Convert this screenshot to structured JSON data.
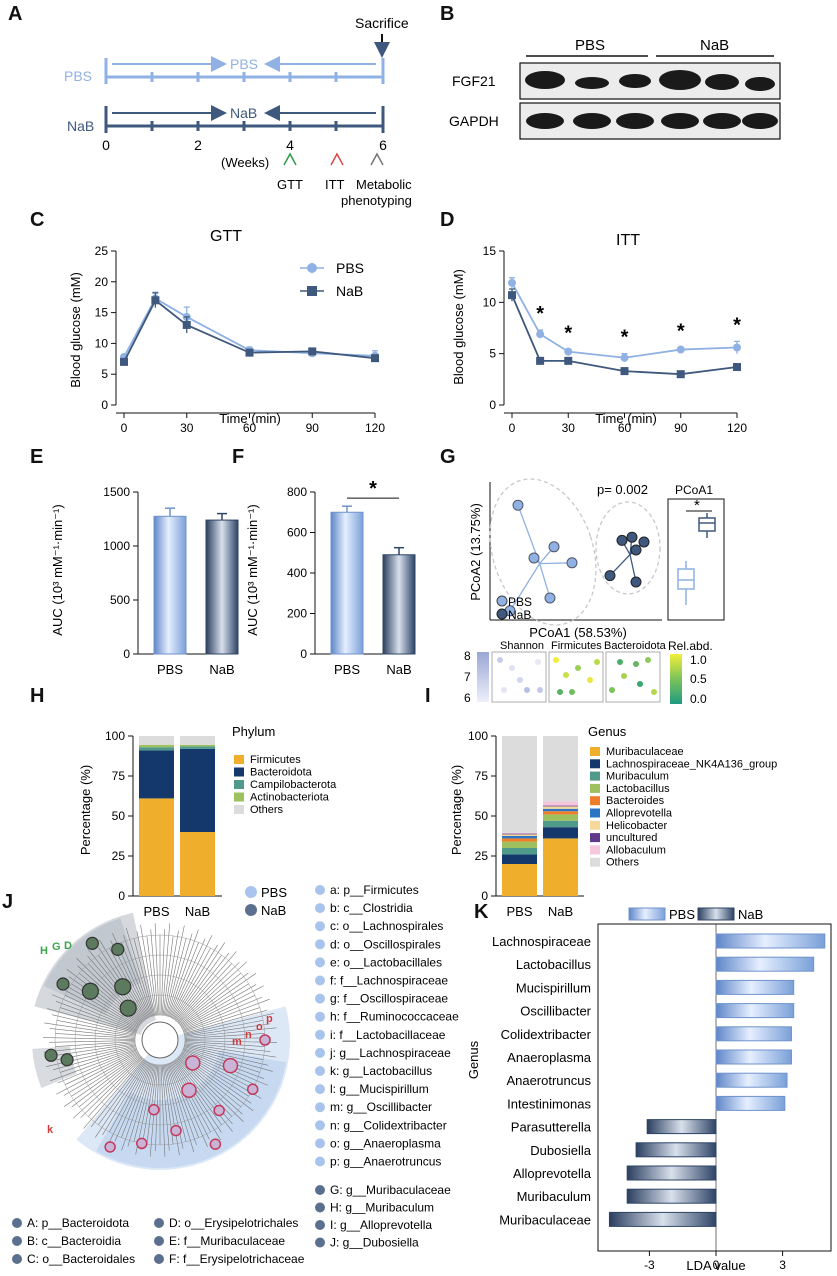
{
  "colors": {
    "pbs": "#8fb1e3",
    "pbs_dark": "#6f93cc",
    "nab": "#3f587e",
    "nab_dark": "#2e4466",
    "firmicutes": "#efae2b",
    "bacteroidota": "#14386b",
    "campilobacterota": "#4f9a8a",
    "actinobacteriota": "#9ec05f",
    "others": "#dcdcdc",
    "muribaculaceae": "#efae2b",
    "lachnospiraceae_nk": "#14386b",
    "muribaculum": "#4f9a8a",
    "lactobacillus": "#9ec05f",
    "bacteroides": "#ef7e2a",
    "alloprevotella": "#2c74c4",
    "helicobacter": "#f7d89c",
    "uncultured": "#5f3a8a",
    "allobaculum": "#f5c6dc"
  },
  "panels": {
    "A": "A",
    "B": "B",
    "C": "C",
    "D": "D",
    "E": "E",
    "F": "F",
    "G": "G",
    "H": "H",
    "I": "I",
    "J": "J",
    "K": "K"
  },
  "panelA": {
    "sacrifice": "Sacrifice",
    "pbs_row": "PBS",
    "nab_row": "NaB",
    "pbs_arrow": "PBS",
    "nab_arrow": "NaB",
    "ticks": [
      "0",
      "2",
      "4",
      "6"
    ],
    "weeks": "(Weeks)",
    "gtt": "GTT",
    "itt": "ITT",
    "metabolic": "Metabolic",
    "phenotyping": "phenotyping"
  },
  "panelB": {
    "pbs": "PBS",
    "nab": "NaB",
    "fgf21": "FGF21",
    "gapdh": "GAPDH"
  },
  "chart_data": [
    {
      "id": "C",
      "type": "line",
      "title": "GTT",
      "xlabel": "Time (min)",
      "ylabel": "Blood glucose (mM)",
      "x": [
        0,
        15,
        30,
        60,
        90,
        120
      ],
      "xticks": [
        "0",
        "30",
        "60",
        "90",
        "120"
      ],
      "yticks": [
        "0",
        "5",
        "10",
        "15",
        "20",
        "25"
      ],
      "xlim": [
        0,
        120
      ],
      "ylim": [
        0,
        25
      ],
      "series": [
        {
          "name": "PBS",
          "values": [
            7.8,
            17.3,
            14.3,
            8.9,
            8.4,
            8.0
          ],
          "errors": [
            0.4,
            1.0,
            1.6,
            0.5,
            0.4,
            0.8
          ]
        },
        {
          "name": "NaB",
          "values": [
            7.0,
            17.0,
            13.0,
            8.5,
            8.7,
            7.6
          ],
          "errors": [
            0.3,
            1.2,
            1.3,
            0.4,
            0.3,
            0.4
          ]
        }
      ]
    },
    {
      "id": "D",
      "type": "line",
      "title": "ITT",
      "xlabel": "Time (min)",
      "ylabel": "Blood glucose (mM)",
      "x": [
        0,
        15,
        30,
        60,
        90,
        120
      ],
      "xticks": [
        "0",
        "30",
        "60",
        "90",
        "120"
      ],
      "yticks": [
        "0",
        "5",
        "10",
        "15"
      ],
      "xlim": [
        0,
        120
      ],
      "ylim": [
        0,
        15
      ],
      "significance": "*",
      "star_x": [
        15,
        30,
        60,
        90,
        120
      ],
      "series": [
        {
          "name": "PBS",
          "values": [
            11.9,
            6.9,
            5.2,
            4.6,
            5.4,
            5.6
          ],
          "errors": [
            0.5,
            0.4,
            0.2,
            0.4,
            0.2,
            0.6
          ]
        },
        {
          "name": "NaB",
          "values": [
            10.7,
            4.3,
            4.3,
            3.3,
            3.0,
            3.7
          ],
          "errors": [
            0.6,
            0.1,
            0.1,
            0.3,
            0.3,
            0.2
          ]
        }
      ]
    },
    {
      "id": "E",
      "type": "bar",
      "ylabel": "AUC (10³ mM⁻¹·min⁻¹)",
      "categories": [
        "PBS",
        "NaB"
      ],
      "values": [
        1275,
        1240
      ],
      "errors": [
        75,
        60
      ],
      "ylim": [
        0,
        1500
      ],
      "yticks": [
        "0",
        "500",
        "1000",
        "1500"
      ]
    },
    {
      "id": "F",
      "type": "bar",
      "ylabel": "AUC (10³ mM⁻¹·min⁻¹)",
      "categories": [
        "PBS",
        "NaB"
      ],
      "values": [
        700,
        490
      ],
      "errors": [
        30,
        35
      ],
      "ylim": [
        0,
        800
      ],
      "yticks": [
        "0",
        "200",
        "400",
        "600",
        "800"
      ],
      "significance": "*"
    },
    {
      "id": "G",
      "type": "scatter",
      "xlabel": "PCoA1 (58.53%)",
      "ylabel": "PCoA2 (13.75%)",
      "pvalue": "p= 0.002",
      "legend": [
        "PBS",
        "NaB"
      ],
      "boxplot_title": "PCoA1",
      "boxplot_sig": "*",
      "pbs_points": [
        [
          -0.3,
          0.28
        ],
        [
          -0.12,
          0.02
        ],
        [
          -0.22,
          -0.05
        ],
        [
          -0.03,
          -0.08
        ],
        [
          -0.14,
          -0.3
        ],
        [
          -0.34,
          -0.38
        ]
      ],
      "nab_points": [
        [
          0.22,
          0.06
        ],
        [
          0.27,
          0.08
        ],
        [
          0.29,
          0.0
        ],
        [
          0.33,
          0.05
        ],
        [
          0.16,
          -0.16
        ],
        [
          0.29,
          -0.2
        ]
      ],
      "heat_labels": [
        "Shannon",
        "Firmicutes",
        "Bacteroidota"
      ],
      "heat_title": "Rel.abd.",
      "heat_scale": [
        "1.0",
        "0.5",
        "0.0"
      ],
      "shannon_scale": [
        "8",
        "7",
        "6"
      ]
    },
    {
      "id": "H",
      "type": "bar",
      "ylabel": "Percentage (%)",
      "categories": [
        "PBS",
        "NaB"
      ],
      "legend_title": "Phylum",
      "yticks": [
        "0",
        "25",
        "50",
        "75",
        "100"
      ],
      "ylim": [
        0,
        100
      ],
      "series": [
        {
          "name": "Firmicutes",
          "values": [
            61,
            40
          ]
        },
        {
          "name": "Bacteroidota",
          "values": [
            30,
            52
          ]
        },
        {
          "name": "Campilobacterota",
          "values": [
            2,
            1.5
          ]
        },
        {
          "name": "Actinobacteriota",
          "values": [
            1.5,
            1
          ]
        },
        {
          "name": "Others",
          "values": [
            5.5,
            5.5
          ]
        }
      ]
    },
    {
      "id": "I",
      "type": "bar",
      "ylabel": "Percentage (%)",
      "categories": [
        "PBS",
        "NaB"
      ],
      "legend_title": "Genus",
      "yticks": [
        "0",
        "25",
        "50",
        "75",
        "100"
      ],
      "ylim": [
        0,
        100
      ],
      "series": [
        {
          "name": "Muribaculaceae",
          "values": [
            20,
            36
          ]
        },
        {
          "name": "Lachnospiraceae_NK4A136_group",
          "values": [
            6,
            7
          ]
        },
        {
          "name": "Muribaculum",
          "values": [
            4,
            4
          ]
        },
        {
          "name": "Lactobacillus",
          "values": [
            4,
            4
          ]
        },
        {
          "name": "Bacteroides",
          "values": [
            2,
            2
          ]
        },
        {
          "name": "Alloprevotella",
          "values": [
            1.5,
            1.5
          ]
        },
        {
          "name": "Helicobacter",
          "values": [
            1,
            1.5
          ]
        },
        {
          "name": "uncultured",
          "values": [
            0.5,
            0.5
          ]
        },
        {
          "name": "Allobaculum",
          "values": [
            0.5,
            2.5
          ]
        },
        {
          "name": "Others",
          "values": [
            60.5,
            41
          ]
        }
      ]
    },
    {
      "id": "K",
      "type": "bar",
      "orientation": "horizontal",
      "xlabel": "LDA value",
      "ylabel": "Genus",
      "legend": [
        "PBS",
        "NaB"
      ],
      "xticks": [
        "-3",
        "0",
        "3"
      ],
      "xlim": [
        -5.0,
        5.3
      ],
      "categories": [
        "Lachnospiraceae",
        "Lactobacillus",
        "Mucispirillum",
        "Oscillibacter",
        "Colidextribacter",
        "Anaeroplasma",
        "Anaerotruncus",
        "Intestinimonas",
        "Parasutterella",
        "Dubosiella",
        "Alloprevotella",
        "Muribaculum",
        "Muribaculaceae"
      ],
      "values": [
        4.9,
        4.4,
        3.5,
        3.5,
        3.4,
        3.4,
        3.2,
        3.1,
        -3.1,
        -3.6,
        -4.0,
        -4.0,
        -4.8
      ],
      "groups": [
        "PBS",
        "PBS",
        "PBS",
        "PBS",
        "PBS",
        "PBS",
        "PBS",
        "PBS",
        "NaB",
        "NaB",
        "NaB",
        "NaB",
        "NaB"
      ]
    }
  ],
  "panelJ": {
    "legend_pbs": "PBS",
    "legend_nab": "NaB",
    "pbs_taxa": [
      "a: p__Firmicutes",
      "b: c__Clostridia",
      "c: o__Lachnospirales",
      "d: o__Oscillospirales",
      "e: o__Lactobacillales",
      "f: f__Lachnospiraceae",
      "g: f__Oscillospiraceae",
      "h: f__Ruminococcaceae",
      "i: f__Lactobacillaceae",
      "j: g__Lachnospiraceae",
      "k: g__Lactobacillus",
      "l: g__Mucispirillum",
      "m: g__Oscillibacter",
      "n: g__Colidextribacter",
      "o: g__Anaeroplasma",
      "p: g__Anaerotruncus"
    ],
    "nab_taxa_right": [
      "G: g__Muribaculaceae",
      "H: g__Muribaculum",
      "I: g__Alloprevotella",
      "J: g__Dubosiella"
    ],
    "nab_taxa_col1": [
      "A: p__Bacteroidota",
      "B: c__Bacteroidia",
      "C: o__Bacteroidales"
    ],
    "nab_taxa_col2": [
      "D: o__Erysipelotrichales",
      "E: f__Muribaculaceae",
      "F: f__Erysipelotrichaceae"
    ],
    "clado_labels_red": [
      "m",
      "n",
      "o",
      "p",
      "k"
    ],
    "clado_labels_green": [
      "H",
      "G",
      "D"
    ]
  }
}
